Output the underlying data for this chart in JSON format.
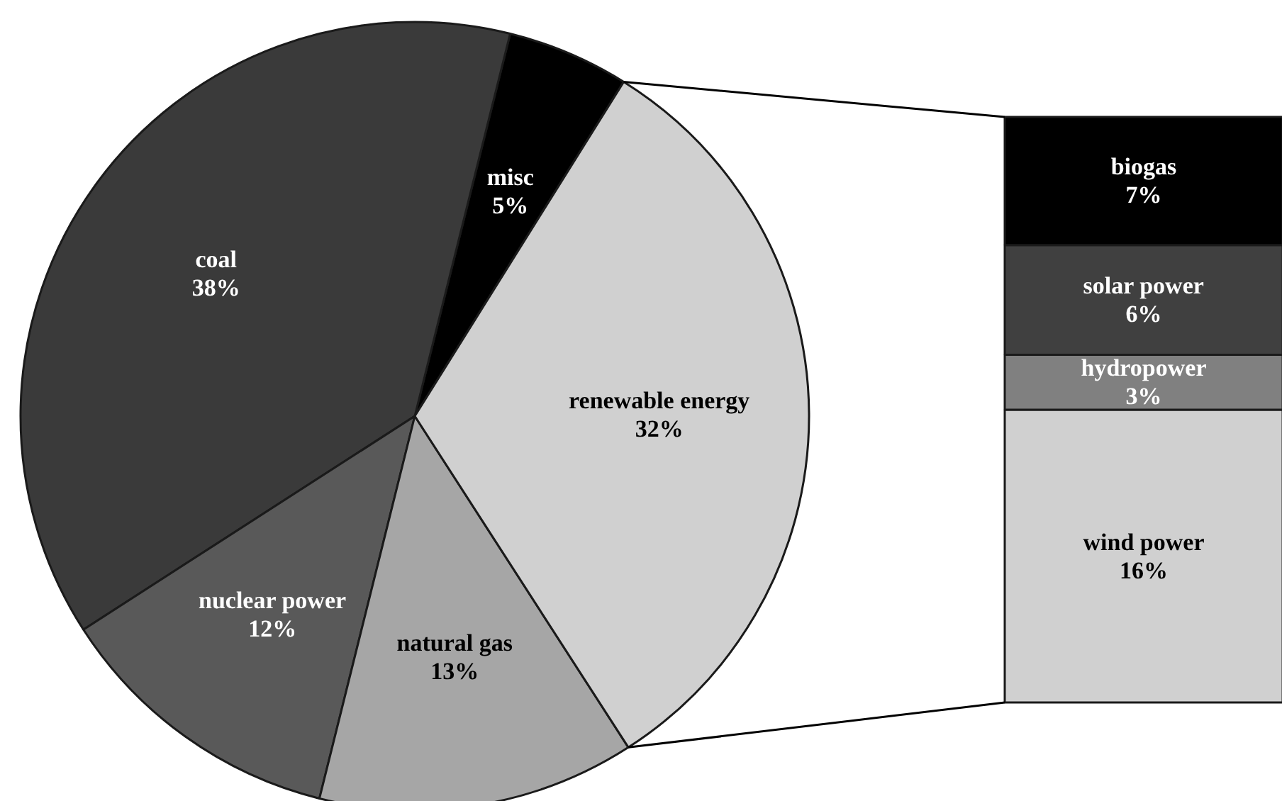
{
  "chart_data": [
    {
      "type": "pie",
      "categories": [
        "misc",
        "coal",
        "nuclear power",
        "natural gas",
        "renewable energy"
      ],
      "values": [
        5,
        38,
        12,
        13,
        32
      ],
      "colors": [
        "#000000",
        "#3a3a3a",
        "#595959",
        "#a6a6a6",
        "#d0d0d0"
      ],
      "value_labels": [
        "5%",
        "38%",
        "12%",
        "13%",
        "32%"
      ]
    },
    {
      "type": "bar",
      "stacked": true,
      "categories": [
        null
      ],
      "series": [
        {
          "name": "wind power",
          "color": "#d0d0d0",
          "values": [
            16
          ],
          "value_labels": [
            "16%"
          ]
        },
        {
          "name": "hydropower",
          "color": "#808080",
          "values": [
            3
          ],
          "value_labels": [
            "3%"
          ]
        },
        {
          "name": "solar power",
          "color": "#404040",
          "values": [
            6
          ],
          "value_labels": [
            "6%"
          ]
        },
        {
          "name": "biogas",
          "color": "#000000",
          "values": [
            7
          ],
          "value_labels": [
            "7%"
          ]
        }
      ]
    }
  ]
}
